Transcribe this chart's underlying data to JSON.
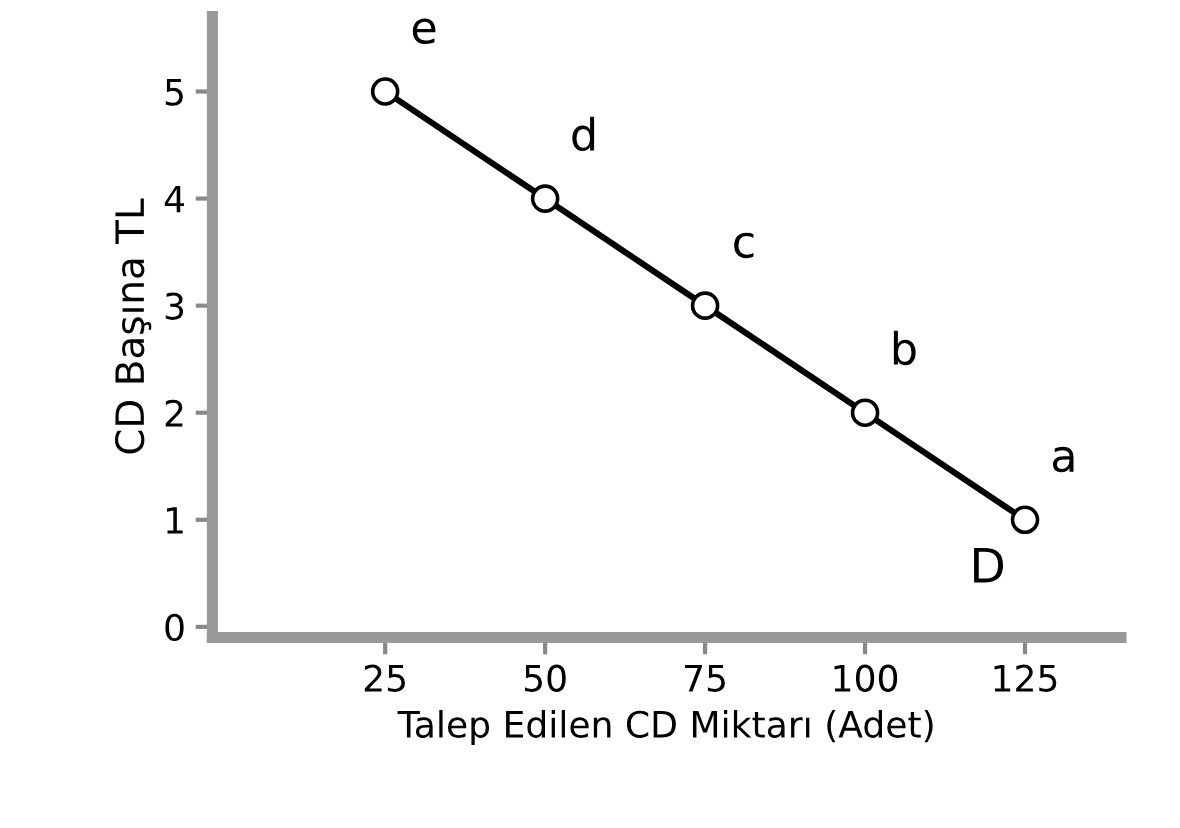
{
  "chart_data": {
    "type": "line",
    "xlabel": "Talep Edilen CD Miktarı (Adet)",
    "ylabel": "CD Başına TL",
    "x": [
      25,
      50,
      75,
      100,
      125
    ],
    "series": [
      {
        "name": "D",
        "color": "#000000",
        "values": [
          5,
          4,
          3,
          2,
          1
        ]
      }
    ],
    "annotations": [
      {
        "text": "e",
        "x": 25,
        "y": 5
      },
      {
        "text": "d",
        "x": 50,
        "y": 4
      },
      {
        "text": "c",
        "x": 75,
        "y": 3
      },
      {
        "text": "b",
        "x": 100,
        "y": 2
      },
      {
        "text": "a",
        "x": 125,
        "y": 1
      }
    ],
    "xlim": [
      -2,
      140
    ],
    "ylim": [
      -0.1,
      5.7
    ],
    "xticks": [
      25,
      50,
      75,
      100,
      125
    ],
    "yticks": [
      0,
      1,
      2,
      3,
      4,
      5
    ],
    "marker": "circle",
    "line_style": "solid",
    "grid": false,
    "legend": false
  }
}
